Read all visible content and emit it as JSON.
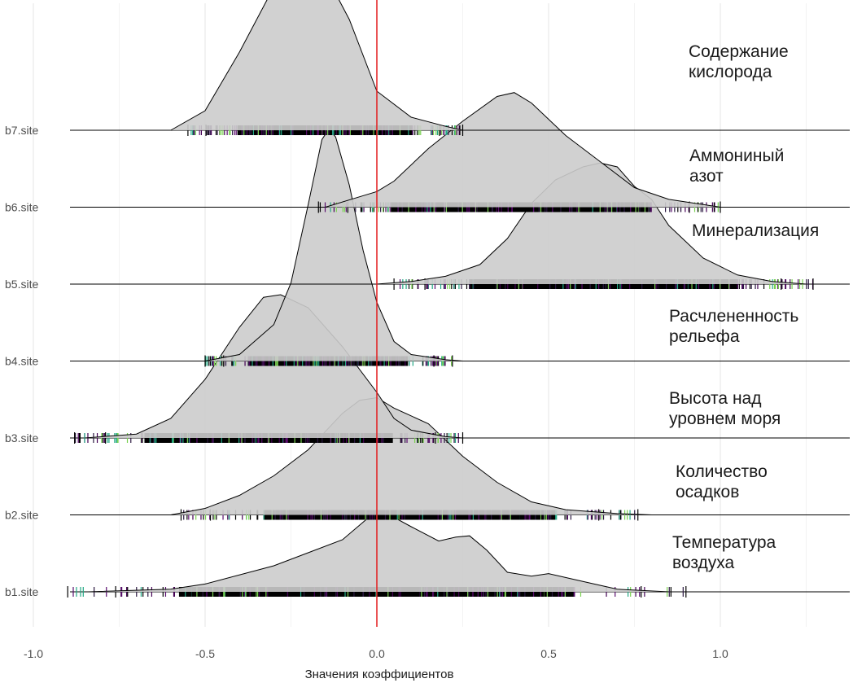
{
  "chart_data": {
    "type": "ridgeline",
    "xlabel": "Значения коэффициентов",
    "xlim": [
      -1.1,
      1.4
    ],
    "x_ticks": [
      {
        "value": -1.0,
        "label": "-1.0"
      },
      {
        "value": -0.5,
        "label": "-0.5"
      },
      {
        "value": 0.0,
        "label": "0.0"
      },
      {
        "value": 0.5,
        "label": "0.5"
      },
      {
        "value": 1.0,
        "label": "1.0"
      }
    ],
    "reference_line": {
      "x": 0,
      "color": "#e31a1c"
    },
    "fill_color": "#cccccc",
    "rug_colors": [
      "#000000",
      "#5a0d6e",
      "#2a1840",
      "#22a884",
      "#7ad151",
      "#440154"
    ],
    "grid": true,
    "series": [
      {
        "name": "b1.site",
        "label": "Температура\nвоздуха",
        "density_x": [
          -0.84,
          -0.6,
          -0.5,
          -0.3,
          -0.1,
          -0.02,
          0.03,
          0.1,
          0.18,
          0.23,
          0.27,
          0.32,
          0.38,
          0.45,
          0.5,
          0.6,
          0.7,
          0.85
        ],
        "density_y": [
          0.0,
          0.02,
          0.06,
          0.2,
          0.4,
          0.58,
          0.6,
          0.5,
          0.39,
          0.42,
          0.43,
          0.32,
          0.15,
          0.12,
          0.14,
          0.08,
          0.02,
          0.0
        ],
        "rug_range": [
          -0.9,
          0.9
        ]
      },
      {
        "name": "b2.site",
        "label": "Количество\nосадков",
        "density_x": [
          -0.6,
          -0.5,
          -0.4,
          -0.3,
          -0.2,
          -0.1,
          -0.05,
          0.0,
          0.05,
          0.15,
          0.25,
          0.35,
          0.45,
          0.55,
          0.7,
          0.8
        ],
        "density_y": [
          0.0,
          0.05,
          0.15,
          0.3,
          0.5,
          0.78,
          0.88,
          0.9,
          0.82,
          0.7,
          0.45,
          0.25,
          0.1,
          0.04,
          0.01,
          0.0
        ],
        "rug_range": [
          -0.57,
          0.76
        ]
      },
      {
        "name": "b3.site",
        "label": "Высота над\nуровнем моря",
        "density_x": [
          -0.85,
          -0.7,
          -0.6,
          -0.5,
          -0.4,
          -0.33,
          -0.28,
          -0.2,
          -0.1,
          0.0,
          0.05,
          0.1,
          0.2,
          0.25
        ],
        "density_y": [
          0.0,
          0.03,
          0.15,
          0.45,
          0.85,
          1.08,
          1.1,
          1.0,
          0.7,
          0.35,
          0.15,
          0.06,
          0.01,
          0.0
        ],
        "rug_range": [
          -0.88,
          0.25
        ]
      },
      {
        "name": "b4.site",
        "label": "Расчлененность\nрельефа",
        "density_x": [
          -0.5,
          -0.4,
          -0.3,
          -0.25,
          -0.2,
          -0.16,
          -0.14,
          -0.12,
          -0.08,
          -0.04,
          0.0,
          0.05,
          0.1,
          0.2,
          0.25
        ],
        "density_y": [
          0.0,
          0.05,
          0.28,
          0.6,
          1.2,
          1.7,
          1.78,
          1.72,
          1.35,
          0.85,
          0.45,
          0.15,
          0.05,
          0.01,
          0.0
        ],
        "rug_range": [
          -0.5,
          0.22
        ]
      },
      {
        "name": "b5.site",
        "label": "Минерализация",
        "density_x": [
          0.0,
          0.1,
          0.2,
          0.3,
          0.38,
          0.45,
          0.52,
          0.6,
          0.65,
          0.7,
          0.75,
          0.8,
          0.85,
          0.95,
          1.05,
          1.15,
          1.25
        ],
        "density_y": [
          0.0,
          0.02,
          0.06,
          0.15,
          0.35,
          0.62,
          0.8,
          0.9,
          0.93,
          0.9,
          0.75,
          0.65,
          0.45,
          0.2,
          0.07,
          0.02,
          0.0
        ],
        "rug_range": [
          0.05,
          1.27
        ]
      },
      {
        "name": "b6.site",
        "label": "Аммониный\nазот",
        "density_x": [
          -0.15,
          -0.05,
          0.0,
          0.05,
          0.15,
          0.25,
          0.35,
          0.4,
          0.45,
          0.55,
          0.65,
          0.75,
          0.85,
          0.95,
          1.0
        ],
        "density_y": [
          0.0,
          0.08,
          0.12,
          0.2,
          0.45,
          0.66,
          0.85,
          0.88,
          0.8,
          0.55,
          0.35,
          0.15,
          0.06,
          0.02,
          0.0
        ],
        "rug_range": [
          -0.17,
          1.0
        ]
      },
      {
        "name": "b7.site",
        "label": "Содержание\nкислорода",
        "density_x": [
          -0.6,
          -0.5,
          -0.4,
          -0.32,
          -0.25,
          -0.2,
          -0.15,
          -0.08,
          0.0,
          0.1,
          0.2,
          0.25
        ],
        "density_y": [
          0.0,
          0.15,
          0.6,
          1.0,
          1.22,
          1.26,
          1.2,
          0.85,
          0.3,
          0.1,
          0.03,
          0.0
        ],
        "rug_range": [
          -0.55,
          0.25
        ]
      }
    ]
  }
}
